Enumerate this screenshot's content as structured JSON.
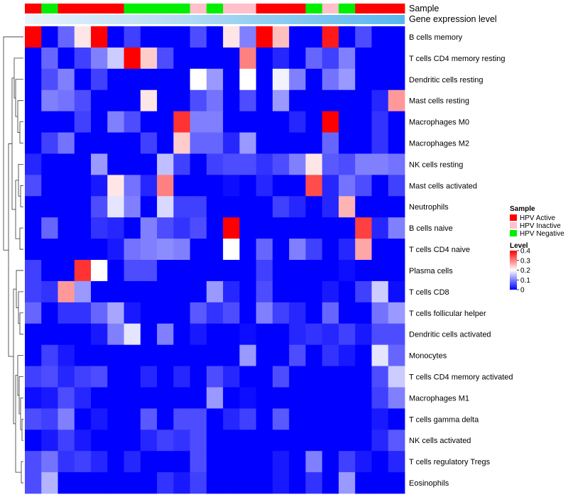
{
  "chart_data": {
    "type": "heatmap",
    "title": "",
    "annotation_labels": {
      "sample": "Sample",
      "expression": "Gene expression level"
    },
    "rows": [
      "B cells memory",
      "T cells CD4 memory resting",
      "Dendritic cells resting",
      "Mast cells resting",
      "Macrophages M0",
      "Macrophages M2",
      "NK cells resting",
      "Mast cells activated",
      "Neutrophils",
      "B cells naive",
      "T cells CD4 naive",
      "Plasma cells",
      "T cells CD8",
      "T cells follicular helper",
      "Dendritic cells activated",
      "Monocytes",
      "T cells CD4 memory activated",
      "Macrophages M1",
      "T cells gamma delta",
      "NK cells activated",
      "T cells regulatory  Tregs",
      "Eosinophils"
    ],
    "sample_groups": [
      "HPV Active",
      "HPV Negative",
      "HPV Active",
      "HPV Active",
      "HPV Active",
      "HPV Active",
      "HPV Negative",
      "HPV Negative",
      "HPV Negative",
      "HPV Negative",
      "HPV Inactive",
      "HPV Negative",
      "HPV Inactive",
      "HPV Inactive",
      "HPV Active",
      "HPV Active",
      "HPV Active",
      "HPV Negative",
      "HPV Inactive",
      "HPV Negative",
      "HPV Active",
      "HPV Active",
      "HPV Active"
    ],
    "values": [
      [
        0.4,
        0,
        0.08,
        0.22,
        0.4,
        0,
        0.05,
        0,
        0,
        0,
        0.06,
        0,
        0.22,
        0.1,
        0.4,
        0.25,
        0,
        0,
        0.38,
        0,
        0.06,
        0,
        0
      ],
      [
        0,
        0.08,
        0,
        0.05,
        0.1,
        0.16,
        0.4,
        0.24,
        0.06,
        0,
        0,
        0,
        0,
        0.3,
        0,
        0.03,
        0,
        0.08,
        0.05,
        0.1,
        0,
        0,
        0
      ],
      [
        0,
        0.06,
        0.1,
        0,
        0.05,
        0,
        0,
        0,
        0,
        0,
        0.2,
        0.12,
        0,
        0.2,
        0,
        0.19,
        0.1,
        0,
        0.09,
        0.12,
        0,
        0,
        0
      ],
      [
        0,
        0.1,
        0.09,
        0.06,
        0,
        0,
        0,
        0.22,
        0,
        0,
        0.06,
        0.09,
        0,
        0.06,
        0,
        0.12,
        0,
        0,
        0,
        0,
        0,
        0.03,
        0.28
      ],
      [
        0,
        0,
        0,
        0.05,
        0,
        0.1,
        0.06,
        0,
        0,
        0.36,
        0.1,
        0.1,
        0,
        0,
        0,
        0,
        0.03,
        0,
        0.4,
        0,
        0,
        0.04,
        0
      ],
      [
        0,
        0.05,
        0.09,
        0,
        0,
        0,
        0,
        0.05,
        0,
        0.24,
        0.08,
        0.08,
        0.03,
        0.12,
        0,
        0,
        0,
        0,
        0.08,
        0,
        0,
        0.04,
        0
      ],
      [
        0.03,
        0,
        0,
        0,
        0.12,
        0,
        0,
        0,
        0.15,
        0.05,
        0,
        0.05,
        0.06,
        0.06,
        0.04,
        0.06,
        0.1,
        0.22,
        0.07,
        0.06,
        0.1,
        0.1,
        0.09
      ],
      [
        0.06,
        0,
        0,
        0,
        0.02,
        0.22,
        0.09,
        0.03,
        0.3,
        0,
        0,
        0,
        0.01,
        0,
        0.03,
        0,
        0,
        0.34,
        0.03,
        0.09,
        0.06,
        0,
        0.05
      ],
      [
        0,
        0,
        0,
        0,
        0.06,
        0.18,
        0.1,
        0,
        0.17,
        0.05,
        0.05,
        0,
        0,
        0,
        0,
        0.05,
        0.03,
        0,
        0.03,
        0.26,
        0,
        0,
        0
      ],
      [
        0,
        0.08,
        0,
        0,
        0.04,
        0.03,
        0,
        0.1,
        0.06,
        0.04,
        0.06,
        0,
        0.4,
        0,
        0,
        0,
        0,
        0,
        0,
        0,
        0.35,
        0.03,
        0.1
      ],
      [
        0,
        0,
        0,
        0,
        0,
        0.02,
        0.09,
        0.1,
        0.11,
        0.1,
        0,
        0,
        0.2,
        0,
        0.08,
        0,
        0.1,
        0.05,
        0,
        0.03,
        0.27,
        0,
        0
      ],
      [
        0.05,
        0,
        0,
        0.36,
        0.2,
        0,
        0.06,
        0.06,
        0,
        0,
        0,
        0,
        0,
        0,
        0.05,
        0,
        0,
        0,
        0,
        0.01,
        0,
        0,
        0
      ],
      [
        0.05,
        0.04,
        0.28,
        0.12,
        0,
        0,
        0,
        0,
        0,
        0,
        0,
        0.12,
        0.03,
        0,
        0.06,
        0,
        0,
        0,
        0.02,
        0,
        0.05,
        0.16,
        0.01
      ],
      [
        0.08,
        0,
        0.04,
        0.04,
        0.08,
        0.13,
        0.02,
        0,
        0,
        0,
        0.07,
        0.04,
        0.06,
        0,
        0.1,
        0.05,
        0.03,
        0,
        0.08,
        0,
        0,
        0.09,
        0.12
      ],
      [
        0,
        0,
        0,
        0,
        0.02,
        0.1,
        0.18,
        0,
        0.1,
        0,
        0.02,
        0,
        0,
        0.01,
        0,
        0,
        0.03,
        0.04,
        0.03,
        0.05,
        0.02,
        0.06,
        0.06
      ],
      [
        0,
        0.05,
        0.02,
        0,
        0,
        0,
        0,
        0,
        0,
        0,
        0,
        0,
        0,
        0.12,
        0,
        0,
        0.06,
        0,
        0.04,
        0.02,
        0,
        0.18,
        0.08
      ],
      [
        0.05,
        0.06,
        0.03,
        0.05,
        0.06,
        0,
        0,
        0.03,
        0,
        0.03,
        0,
        0.06,
        0.03,
        0,
        0,
        0.06,
        0,
        0,
        0,
        0,
        0,
        0.06,
        0.16
      ],
      [
        0.01,
        0.02,
        0.06,
        0.03,
        0,
        0,
        0,
        0,
        0,
        0,
        0,
        0.12,
        0,
        0.01,
        0,
        0,
        0,
        0,
        0,
        0,
        0,
        0.05,
        0.1
      ],
      [
        0.06,
        0.05,
        0.1,
        0,
        0.02,
        0,
        0,
        0.07,
        0,
        0.06,
        0.06,
        0,
        0.03,
        0.05,
        0,
        0.07,
        0,
        0,
        0,
        0,
        0,
        0.02,
        0
      ],
      [
        0,
        0.02,
        0.05,
        0.02,
        0,
        0,
        0,
        0.03,
        0.05,
        0.04,
        0.06,
        0,
        0,
        0,
        0,
        0,
        0,
        0,
        0,
        0,
        0,
        0.03,
        0.07
      ],
      [
        0.06,
        0.09,
        0.04,
        0.05,
        0.03,
        0,
        0.03,
        0,
        0,
        0,
        0.06,
        0,
        0,
        0,
        0,
        0.02,
        0,
        0.1,
        0,
        0.05,
        0.02,
        0,
        0.03
      ],
      [
        0.06,
        0.14,
        0,
        0,
        0,
        0,
        0,
        0,
        0.04,
        0.02,
        0.05,
        0,
        0,
        0,
        0,
        0.02,
        0,
        0.04,
        0,
        0.12,
        0,
        0,
        0
      ]
    ],
    "legend": {
      "sample_title": "Sample",
      "sample_entries": [
        {
          "label": "HPV Active",
          "color": "#ff0000"
        },
        {
          "label": "HPV Inactive",
          "color": "#ffc0cb"
        },
        {
          "label": "HPV Negative",
          "color": "#00ee00"
        }
      ],
      "level_title": "Level",
      "level_ticks": [
        "0.4",
        "0.3",
        "0.2",
        "0.1",
        "0"
      ],
      "level_values": [
        0.4,
        0.3,
        0.2,
        0.1,
        0
      ],
      "placement": "right"
    },
    "color_scale": {
      "min": 0,
      "mid": 0.2,
      "max": 0.4,
      "low": "#0000ff",
      "mid_color": "#ffffff",
      "high": "#ff0000"
    },
    "expression_colors": [
      "#eaf4fb",
      "#a6d6f3",
      "#57b6ef"
    ],
    "dendrogram": "rows clustered"
  }
}
